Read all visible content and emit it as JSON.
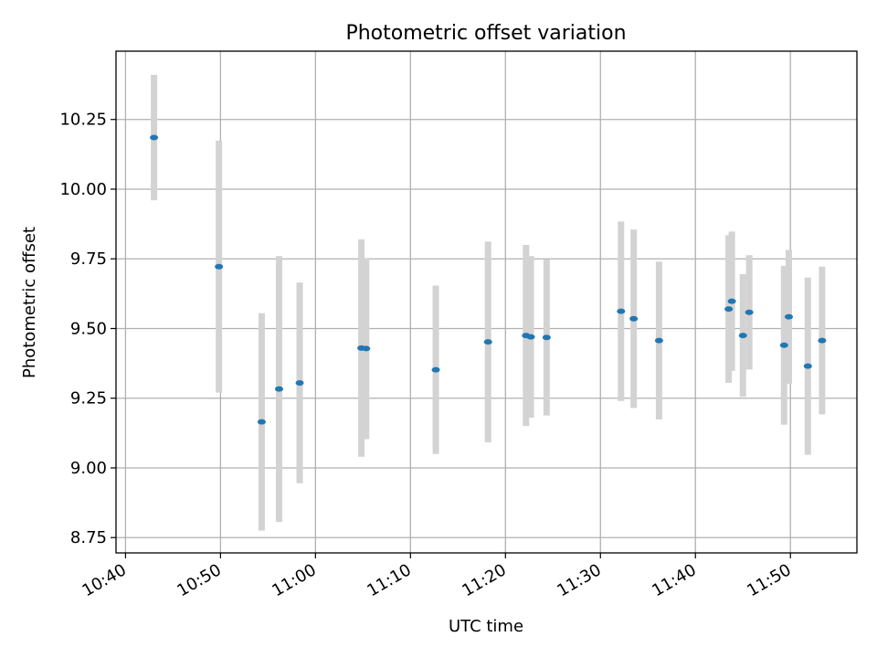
{
  "chart_data": {
    "type": "scatter",
    "title": "Photometric offset variation",
    "xlabel": "UTC time",
    "ylabel": "Photometric offset",
    "grid": true,
    "xlim": [
      "10:39:00",
      "11:57:00"
    ],
    "ylim": [
      8.695,
      10.495
    ],
    "xticks": [
      "10:40",
      "10:50",
      "11:00",
      "11:10",
      "11:20",
      "11:30",
      "11:40",
      "11:50"
    ],
    "yticks": [
      "8.75",
      "9.00",
      "9.25",
      "9.50",
      "9.75",
      "10.00",
      "10.25"
    ],
    "colors": {
      "point": "#1f77b4",
      "errorbar": "#d3d3d3",
      "grid": "#b0b0b0",
      "axes": "#000000"
    },
    "series": [
      {
        "points": [
          {
            "x": "10:43:00",
            "y": 10.185,
            "err": 0.225
          },
          {
            "x": "10:49:50",
            "y": 9.722,
            "err": 0.452
          },
          {
            "x": "10:54:20",
            "y": 9.165,
            "err": 0.39
          },
          {
            "x": "10:56:10",
            "y": 9.283,
            "err": 0.477
          },
          {
            "x": "10:58:20",
            "y": 9.305,
            "err": 0.36
          },
          {
            "x": "11:04:50",
            "y": 9.43,
            "err": 0.39
          },
          {
            "x": "11:05:20",
            "y": 9.428,
            "err": 0.325
          },
          {
            "x": "11:12:40",
            "y": 9.352,
            "err": 0.302
          },
          {
            "x": "11:18:10",
            "y": 9.452,
            "err": 0.36
          },
          {
            "x": "11:22:10",
            "y": 9.475,
            "err": 0.325
          },
          {
            "x": "11:22:40",
            "y": 9.47,
            "err": 0.29
          },
          {
            "x": "11:24:20",
            "y": 9.468,
            "err": 0.28
          },
          {
            "x": "11:32:10",
            "y": 9.562,
            "err": 0.322
          },
          {
            "x": "11:33:30",
            "y": 9.535,
            "err": 0.32
          },
          {
            "x": "11:36:10",
            "y": 9.457,
            "err": 0.283
          },
          {
            "x": "11:43:30",
            "y": 9.57,
            "err": 0.265
          },
          {
            "x": "11:43:50",
            "y": 9.598,
            "err": 0.25
          },
          {
            "x": "11:45:00",
            "y": 9.475,
            "err": 0.22
          },
          {
            "x": "11:45:40",
            "y": 9.558,
            "err": 0.205
          },
          {
            "x": "11:49:20",
            "y": 9.44,
            "err": 0.285
          },
          {
            "x": "11:49:50",
            "y": 9.542,
            "err": 0.24
          },
          {
            "x": "11:51:50",
            "y": 9.365,
            "err": 0.318
          },
          {
            "x": "11:53:20",
            "y": 9.457,
            "err": 0.265
          }
        ]
      }
    ]
  }
}
